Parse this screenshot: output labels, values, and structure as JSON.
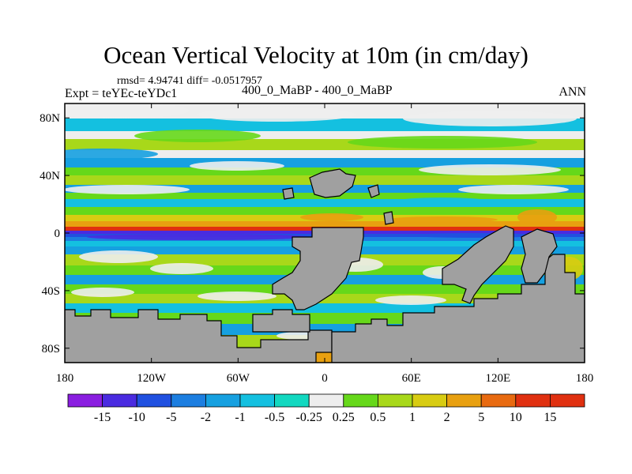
{
  "title": "Ocean Vertical Velocity at 10m (in cm/day)",
  "stats_line": "rmsd= 4.94741 diff= -0.0517957",
  "expt_label": "Expt = teYEc-teYDc1",
  "case_label": "400_0_MaBP - 400_0_MaBP",
  "season_label": "ANN",
  "map": {
    "projection": "cylindrical equidistant",
    "lon_range": [
      -180,
      180
    ],
    "lat_range": [
      -90,
      90
    ],
    "lat_ticks": [
      {
        "value": 80,
        "label": "80N"
      },
      {
        "value": 40,
        "label": "40N"
      },
      {
        "value": 0,
        "label": "0"
      },
      {
        "value": -40,
        "label": "40S"
      },
      {
        "value": -80,
        "label": "80S"
      }
    ],
    "lon_ticks": [
      {
        "value": -180,
        "label": "180"
      },
      {
        "value": -120,
        "label": "120W"
      },
      {
        "value": -60,
        "label": "60W"
      },
      {
        "value": 0,
        "label": "0"
      },
      {
        "value": 60,
        "label": "60E"
      },
      {
        "value": 120,
        "label": "120E"
      },
      {
        "value": 180,
        "label": "180"
      }
    ],
    "land_color": "#a0a0a0",
    "ocean_background": "#ffffff"
  },
  "colorbar": {
    "labels": [
      "-15",
      "-10",
      "-5",
      "-2",
      "-1",
      "-0.5",
      "-0.25",
      "0.25",
      "0.5",
      "1",
      "2",
      "5",
      "10",
      "15"
    ],
    "colors": [
      "#8a1ee0",
      "#4a2be0",
      "#2050e0",
      "#1c7ee0",
      "#16a0e0",
      "#14c0e0",
      "#12d8c0",
      "#eeeeee",
      "#66d81a",
      "#a8d81a",
      "#d8cc12",
      "#e8a010",
      "#e86a10",
      "#e03010",
      "#e03010"
    ]
  }
}
